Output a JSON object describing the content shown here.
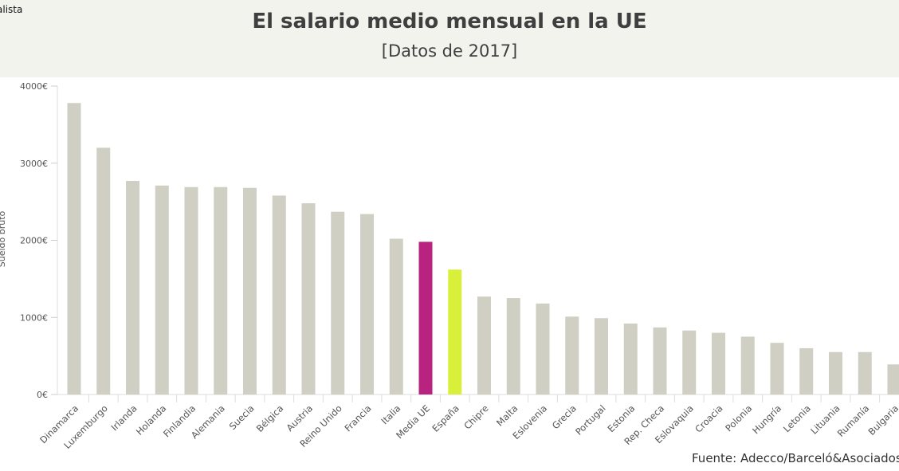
{
  "brand": "alista",
  "source": "Fuente: Adecco/Barceló&Asociados",
  "colors": {
    "default": "#cfcfc3",
    "highlight_eu": "#b8237f",
    "highlight_spain": "#d8f03a",
    "header_bg": "#f3f3ee"
  },
  "chart_data": {
    "type": "bar",
    "title": "El salario medio mensual en la UE",
    "subtitle": "[Datos de 2017]",
    "ylabel": "Sueldo bruto",
    "ylim": [
      0,
      4000
    ],
    "yticks": [
      "0€",
      "1000€",
      "2000€",
      "3000€",
      "4000€"
    ],
    "grid": false,
    "categories": [
      "Dinamarca",
      "Luxemburgo",
      "Irlanda",
      "Holanda",
      "Finlandia",
      "Alemania",
      "Suecia",
      "Bélgica",
      "Austria",
      "Reino Unido",
      "Francia",
      "Italia",
      "Media UE",
      "España",
      "Chipre",
      "Malta",
      "Eslovenia",
      "Grecia",
      "Portugal",
      "Estonia",
      "Rep. Checa",
      "Eslovaquia",
      "Croacia",
      "Polonia",
      "Hungría",
      "Letonia",
      "Lituania",
      "Rumanía",
      "Bulgaria"
    ],
    "values": [
      3780,
      3200,
      2770,
      2710,
      2690,
      2690,
      2680,
      2580,
      2480,
      2370,
      2340,
      2020,
      1980,
      1620,
      1270,
      1250,
      1180,
      1010,
      990,
      920,
      870,
      830,
      800,
      750,
      670,
      600,
      550,
      550,
      390
    ],
    "highlights": {
      "Media UE": "highlight_eu",
      "España": "highlight_spain"
    }
  }
}
